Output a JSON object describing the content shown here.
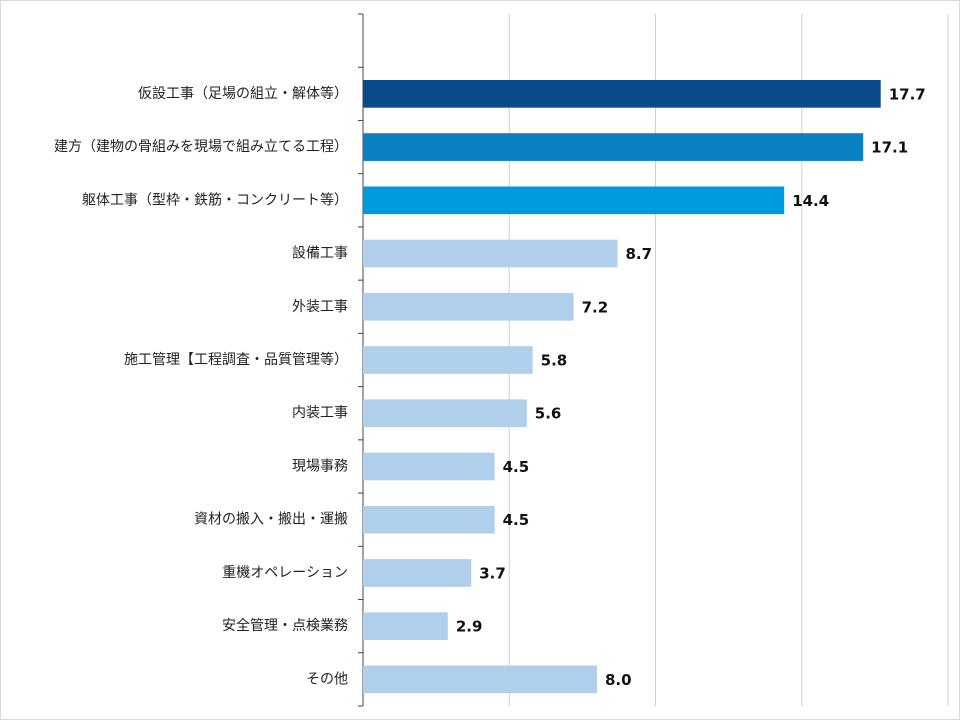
{
  "chart_data": {
    "type": "hbar",
    "categories": [
      null,
      "仮設工事（足場の組立・解体等）",
      "建方（建物の骨組みを現場で組み立てる工程）",
      "躯体工事（型枠・鉄筋・コンクリート等）",
      "設備工事",
      "外装工事",
      "施工管理【工程調査・品質管理等）",
      "内装工事",
      "現場事務",
      "資材の搬入・搬出・運搬",
      "重機オペレーション",
      "安全管理・点検業務",
      "その他"
    ],
    "values": [
      null,
      17.7,
      17.1,
      14.4,
      8.7,
      7.2,
      5.8,
      5.6,
      4.5,
      4.5,
      3.7,
      2.9,
      8.0
    ],
    "value_labels": [
      null,
      "17.7",
      "17.1",
      "14.4",
      "8.7",
      "7.2",
      "5.8",
      "5.6",
      "4.5",
      "4.5",
      "3.7",
      "2.9",
      "8.0"
    ],
    "colors": [
      null,
      "#0a4c8b",
      "#0a7fc2",
      "#009ade",
      "#b0cfec",
      "#b0cfec",
      "#b0cfec",
      "#b0cfec",
      "#b0cfec",
      "#b0cfec",
      "#b0cfec",
      "#b0cfec",
      "#b0cfec"
    ],
    "xlim": [
      0,
      20
    ],
    "xticks": [
      0,
      5,
      10,
      15,
      20
    ],
    "grid": true
  }
}
